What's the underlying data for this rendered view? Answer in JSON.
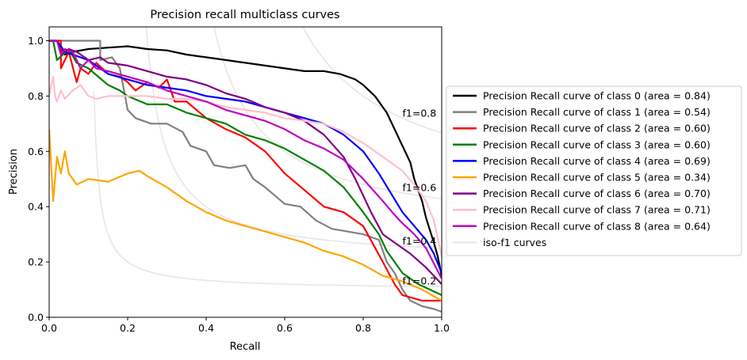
{
  "chart_data": {
    "type": "line",
    "title": "Precision recall multiclass curves",
    "xlabel": "Recall",
    "ylabel": "Precision",
    "xlim": [
      0.0,
      1.0
    ],
    "ylim": [
      0.0,
      1.05
    ],
    "xticks": [
      "0.0",
      "0.2",
      "0.4",
      "0.6",
      "0.8",
      "1.0"
    ],
    "yticks": [
      "0.0",
      "0.2",
      "0.4",
      "0.6",
      "0.8",
      "1.0"
    ],
    "grid": false,
    "legend_position": "outside-right",
    "iso_f1": {
      "legend_label": "iso-f1 curves",
      "color": "#e5e5e5",
      "levels": [
        {
          "f": 0.2,
          "label": "f1=0.2"
        },
        {
          "f": 0.4,
          "label": "f1=0.4"
        },
        {
          "f": 0.6,
          "label": "f1=0.6"
        },
        {
          "f": 0.8,
          "label": "f1=0.8"
        }
      ]
    },
    "series": [
      {
        "name": "Precision Recall curve of class 0 (area = 0.84)",
        "color": "#000000",
        "points": [
          [
            0,
            1.0
          ],
          [
            0.02,
            1.0
          ],
          [
            0.04,
            0.95
          ],
          [
            0.06,
            0.96
          ],
          [
            0.1,
            0.97
          ],
          [
            0.15,
            0.975
          ],
          [
            0.2,
            0.98
          ],
          [
            0.25,
            0.97
          ],
          [
            0.3,
            0.965
          ],
          [
            0.35,
            0.95
          ],
          [
            0.4,
            0.94
          ],
          [
            0.45,
            0.93
          ],
          [
            0.5,
            0.92
          ],
          [
            0.55,
            0.91
          ],
          [
            0.6,
            0.9
          ],
          [
            0.65,
            0.89
          ],
          [
            0.7,
            0.89
          ],
          [
            0.74,
            0.88
          ],
          [
            0.78,
            0.86
          ],
          [
            0.8,
            0.84
          ],
          [
            0.83,
            0.8
          ],
          [
            0.86,
            0.74
          ],
          [
            0.88,
            0.68
          ],
          [
            0.9,
            0.62
          ],
          [
            0.92,
            0.56
          ],
          [
            0.93,
            0.5
          ],
          [
            0.95,
            0.42
          ],
          [
            0.96,
            0.36
          ],
          [
            0.98,
            0.27
          ],
          [
            0.99,
            0.22
          ],
          [
            1.0,
            0.15
          ]
        ]
      },
      {
        "name": "Precision Recall curve of class 1 (area = 0.54)",
        "color": "#808080",
        "points": [
          [
            0,
            1.0
          ],
          [
            0.13,
            1.0
          ],
          [
            0.13,
            0.93
          ],
          [
            0.16,
            0.94
          ],
          [
            0.18,
            0.9
          ],
          [
            0.2,
            0.75
          ],
          [
            0.22,
            0.72
          ],
          [
            0.26,
            0.7
          ],
          [
            0.3,
            0.7
          ],
          [
            0.34,
            0.67
          ],
          [
            0.36,
            0.62
          ],
          [
            0.4,
            0.6
          ],
          [
            0.42,
            0.55
          ],
          [
            0.46,
            0.54
          ],
          [
            0.5,
            0.55
          ],
          [
            0.52,
            0.5
          ],
          [
            0.55,
            0.47
          ],
          [
            0.6,
            0.41
          ],
          [
            0.64,
            0.4
          ],
          [
            0.68,
            0.35
          ],
          [
            0.72,
            0.32
          ],
          [
            0.76,
            0.31
          ],
          [
            0.8,
            0.3
          ],
          [
            0.84,
            0.28
          ],
          [
            0.86,
            0.2
          ],
          [
            0.88,
            0.16
          ],
          [
            0.9,
            0.1
          ],
          [
            0.92,
            0.06
          ],
          [
            0.95,
            0.04
          ],
          [
            0.98,
            0.03
          ],
          [
            1.0,
            0.02
          ]
        ]
      },
      {
        "name": "Precision Recall curve of class 2 (area = 0.60)",
        "color": "#ff0000",
        "points": [
          [
            0,
            1.0
          ],
          [
            0.03,
            1.0
          ],
          [
            0.03,
            0.9
          ],
          [
            0.05,
            0.96
          ],
          [
            0.07,
            0.85
          ],
          [
            0.08,
            0.9
          ],
          [
            0.1,
            0.88
          ],
          [
            0.12,
            0.92
          ],
          [
            0.15,
            0.88
          ],
          [
            0.18,
            0.87
          ],
          [
            0.2,
            0.85
          ],
          [
            0.22,
            0.82
          ],
          [
            0.25,
            0.85
          ],
          [
            0.28,
            0.83
          ],
          [
            0.3,
            0.86
          ],
          [
            0.32,
            0.78
          ],
          [
            0.35,
            0.78
          ],
          [
            0.4,
            0.72
          ],
          [
            0.45,
            0.68
          ],
          [
            0.5,
            0.65
          ],
          [
            0.55,
            0.6
          ],
          [
            0.6,
            0.52
          ],
          [
            0.65,
            0.46
          ],
          [
            0.7,
            0.4
          ],
          [
            0.75,
            0.38
          ],
          [
            0.8,
            0.33
          ],
          [
            0.85,
            0.2
          ],
          [
            0.88,
            0.12
          ],
          [
            0.9,
            0.08
          ],
          [
            0.95,
            0.06
          ],
          [
            1.0,
            0.06
          ]
        ]
      },
      {
        "name": "Precision Recall curve of class 3 (area = 0.60)",
        "color": "#008000",
        "points": [
          [
            0,
            1.0
          ],
          [
            0.01,
            1.0
          ],
          [
            0.02,
            0.93
          ],
          [
            0.05,
            0.97
          ],
          [
            0.07,
            0.92
          ],
          [
            0.1,
            0.9
          ],
          [
            0.15,
            0.84
          ],
          [
            0.18,
            0.82
          ],
          [
            0.2,
            0.8
          ],
          [
            0.25,
            0.77
          ],
          [
            0.3,
            0.77
          ],
          [
            0.35,
            0.74
          ],
          [
            0.4,
            0.72
          ],
          [
            0.45,
            0.7
          ],
          [
            0.5,
            0.66
          ],
          [
            0.55,
            0.64
          ],
          [
            0.6,
            0.61
          ],
          [
            0.65,
            0.57
          ],
          [
            0.7,
            0.53
          ],
          [
            0.75,
            0.47
          ],
          [
            0.8,
            0.38
          ],
          [
            0.84,
            0.3
          ],
          [
            0.86,
            0.24
          ],
          [
            0.9,
            0.16
          ],
          [
            0.94,
            0.12
          ],
          [
            0.97,
            0.1
          ],
          [
            1.0,
            0.08
          ]
        ]
      },
      {
        "name": "Precision Recall curve of class 4 (area = 0.69)",
        "color": "#0000ff",
        "points": [
          [
            0,
            1.0
          ],
          [
            0.02,
            1.0
          ],
          [
            0.04,
            0.96
          ],
          [
            0.06,
            0.95
          ],
          [
            0.1,
            0.93
          ],
          [
            0.15,
            0.88
          ],
          [
            0.2,
            0.86
          ],
          [
            0.25,
            0.84
          ],
          [
            0.3,
            0.83
          ],
          [
            0.35,
            0.82
          ],
          [
            0.4,
            0.8
          ],
          [
            0.45,
            0.79
          ],
          [
            0.5,
            0.78
          ],
          [
            0.55,
            0.76
          ],
          [
            0.6,
            0.74
          ],
          [
            0.65,
            0.72
          ],
          [
            0.7,
            0.7
          ],
          [
            0.75,
            0.66
          ],
          [
            0.8,
            0.6
          ],
          [
            0.84,
            0.52
          ],
          [
            0.87,
            0.45
          ],
          [
            0.9,
            0.38
          ],
          [
            0.93,
            0.33
          ],
          [
            0.96,
            0.28
          ],
          [
            0.98,
            0.23
          ],
          [
            1.0,
            0.16
          ]
        ]
      },
      {
        "name": "Precision Recall curve of class 5 (area = 0.34)",
        "color": "#ffa500",
        "points": [
          [
            0,
            0.68
          ],
          [
            0.01,
            0.42
          ],
          [
            0.015,
            0.5
          ],
          [
            0.02,
            0.58
          ],
          [
            0.03,
            0.52
          ],
          [
            0.04,
            0.6
          ],
          [
            0.05,
            0.52
          ],
          [
            0.07,
            0.48
          ],
          [
            0.1,
            0.5
          ],
          [
            0.15,
            0.49
          ],
          [
            0.2,
            0.52
          ],
          [
            0.23,
            0.53
          ],
          [
            0.25,
            0.51
          ],
          [
            0.3,
            0.47
          ],
          [
            0.35,
            0.42
          ],
          [
            0.4,
            0.38
          ],
          [
            0.45,
            0.35
          ],
          [
            0.5,
            0.33
          ],
          [
            0.55,
            0.31
          ],
          [
            0.6,
            0.29
          ],
          [
            0.65,
            0.27
          ],
          [
            0.7,
            0.24
          ],
          [
            0.75,
            0.22
          ],
          [
            0.8,
            0.19
          ],
          [
            0.85,
            0.15
          ],
          [
            0.9,
            0.13
          ],
          [
            0.95,
            0.1
          ],
          [
            1.0,
            0.06
          ]
        ]
      },
      {
        "name": "Precision Recall curve of class 6 (area = 0.70)",
        "color": "#800080",
        "points": [
          [
            0,
            1.0
          ],
          [
            0.02,
            1.0
          ],
          [
            0.03,
            0.95
          ],
          [
            0.05,
            0.97
          ],
          [
            0.07,
            0.96
          ],
          [
            0.1,
            0.93
          ],
          [
            0.13,
            0.94
          ],
          [
            0.15,
            0.92
          ],
          [
            0.2,
            0.91
          ],
          [
            0.25,
            0.89
          ],
          [
            0.3,
            0.87
          ],
          [
            0.35,
            0.86
          ],
          [
            0.4,
            0.84
          ],
          [
            0.45,
            0.81
          ],
          [
            0.5,
            0.79
          ],
          [
            0.55,
            0.76
          ],
          [
            0.6,
            0.74
          ],
          [
            0.65,
            0.71
          ],
          [
            0.7,
            0.66
          ],
          [
            0.75,
            0.58
          ],
          [
            0.78,
            0.5
          ],
          [
            0.8,
            0.44
          ],
          [
            0.82,
            0.38
          ],
          [
            0.85,
            0.3
          ],
          [
            0.88,
            0.27
          ],
          [
            0.92,
            0.23
          ],
          [
            0.96,
            0.18
          ],
          [
            1.0,
            0.12
          ]
        ]
      },
      {
        "name": "Precision Recall curve of class 7 (area = 0.71)",
        "color": "#ffc0cb",
        "points": [
          [
            0,
            0.8
          ],
          [
            0.01,
            0.87
          ],
          [
            0.015,
            0.8
          ],
          [
            0.02,
            0.78
          ],
          [
            0.03,
            0.82
          ],
          [
            0.04,
            0.79
          ],
          [
            0.06,
            0.82
          ],
          [
            0.08,
            0.84
          ],
          [
            0.1,
            0.8
          ],
          [
            0.12,
            0.79
          ],
          [
            0.15,
            0.8
          ],
          [
            0.2,
            0.8
          ],
          [
            0.25,
            0.8
          ],
          [
            0.3,
            0.79
          ],
          [
            0.35,
            0.79
          ],
          [
            0.4,
            0.78
          ],
          [
            0.45,
            0.76
          ],
          [
            0.5,
            0.75
          ],
          [
            0.55,
            0.74
          ],
          [
            0.6,
            0.72
          ],
          [
            0.65,
            0.71
          ],
          [
            0.7,
            0.7
          ],
          [
            0.75,
            0.67
          ],
          [
            0.8,
            0.63
          ],
          [
            0.85,
            0.58
          ],
          [
            0.9,
            0.53
          ],
          [
            0.93,
            0.48
          ],
          [
            0.96,
            0.42
          ],
          [
            0.98,
            0.35
          ],
          [
            1.0,
            0.22
          ]
        ]
      },
      {
        "name": "Precision Recall curve of class 8 (area = 0.64)",
        "color": "#bf00bf",
        "points": [
          [
            0,
            1.0
          ],
          [
            0.02,
            1.0
          ],
          [
            0.03,
            0.95
          ],
          [
            0.04,
            0.97
          ],
          [
            0.06,
            0.96
          ],
          [
            0.08,
            0.9
          ],
          [
            0.1,
            0.93
          ],
          [
            0.12,
            0.9
          ],
          [
            0.15,
            0.89
          ],
          [
            0.2,
            0.87
          ],
          [
            0.25,
            0.85
          ],
          [
            0.3,
            0.82
          ],
          [
            0.35,
            0.8
          ],
          [
            0.4,
            0.78
          ],
          [
            0.45,
            0.75
          ],
          [
            0.5,
            0.73
          ],
          [
            0.55,
            0.71
          ],
          [
            0.6,
            0.68
          ],
          [
            0.65,
            0.64
          ],
          [
            0.7,
            0.61
          ],
          [
            0.75,
            0.57
          ],
          [
            0.8,
            0.5
          ],
          [
            0.85,
            0.42
          ],
          [
            0.88,
            0.37
          ],
          [
            0.9,
            0.34
          ],
          [
            0.93,
            0.3
          ],
          [
            0.96,
            0.25
          ],
          [
            1.0,
            0.14
          ]
        ]
      }
    ]
  }
}
